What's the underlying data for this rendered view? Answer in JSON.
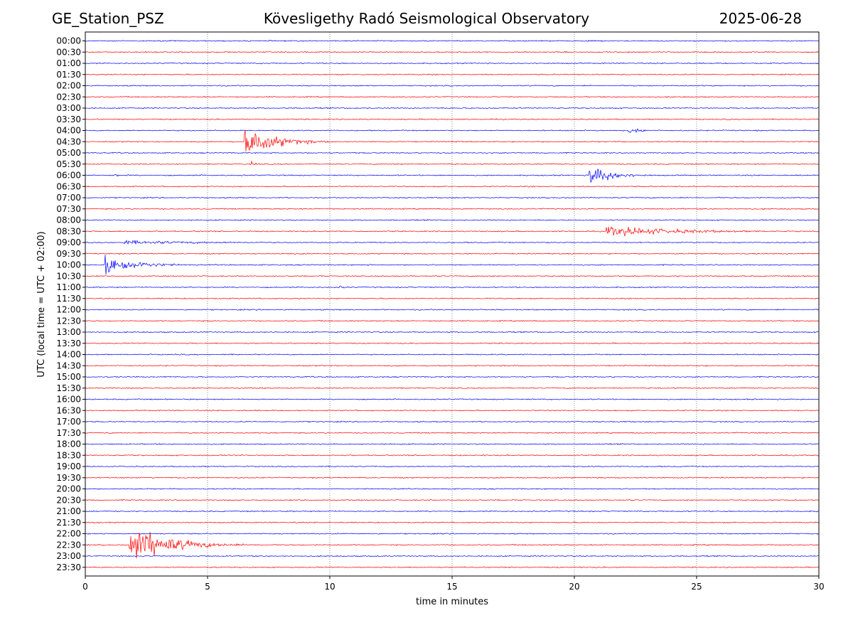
{
  "header": {
    "station": "GE_Station_PSZ",
    "observatory": "Kövesligethy Radó Seismological Observatory",
    "date": "2025-06-28"
  },
  "chart_data": {
    "type": "line",
    "title": "Kövesligethy Radó Seismological Observatory",
    "xlabel": "time in minutes",
    "ylabel": "UTC (local time = UTC + 02:00)",
    "xlim": [
      0,
      30
    ],
    "xticks": [
      0,
      5,
      10,
      15,
      20,
      25,
      30
    ],
    "grid": "vertical dotted lines at each 5 minutes",
    "colors": {
      "even_rows": "#0000ff",
      "odd_rows": "#ff0000",
      "grid": "#555555"
    },
    "rows": [
      "00:00",
      "00:30",
      "01:00",
      "01:30",
      "02:00",
      "02:30",
      "03:00",
      "03:30",
      "04:00",
      "04:30",
      "05:00",
      "05:30",
      "06:00",
      "06:30",
      "07:00",
      "07:30",
      "08:00",
      "08:30",
      "09:00",
      "09:30",
      "10:00",
      "10:30",
      "11:00",
      "11:30",
      "12:00",
      "12:30",
      "13:00",
      "13:30",
      "14:00",
      "14:30",
      "15:00",
      "15:30",
      "16:00",
      "16:30",
      "17:00",
      "17:30",
      "18:00",
      "18:30",
      "19:00",
      "19:30",
      "20:00",
      "20:30",
      "21:00",
      "21:30",
      "22:00",
      "22:30",
      "23:00",
      "23:30"
    ],
    "events": [
      {
        "row": "04:00",
        "start_min": 22.2,
        "peak_rel": 0.25,
        "decay_min": 0.8,
        "end_min": 24.5
      },
      {
        "row": "04:30",
        "start_min": 6.5,
        "peak_rel": 1.3,
        "decay_min": 1.2,
        "end_min": 11.5
      },
      {
        "row": "05:30",
        "start_min": 6.8,
        "peak_rel": 0.25,
        "decay_min": 0.2,
        "end_min": 7.0
      },
      {
        "row": "06:00",
        "start_min": 1.2,
        "peak_rel": 0.2,
        "decay_min": 0.2,
        "end_min": 1.6
      },
      {
        "row": "06:00",
        "start_min": 20.6,
        "peak_rel": 0.9,
        "decay_min": 0.9,
        "end_min": 23.5
      },
      {
        "row": "08:30",
        "start_min": 21.3,
        "peak_rel": 0.45,
        "decay_min": 3.0,
        "end_min": 29.5
      },
      {
        "row": "09:00",
        "start_min": 1.5,
        "peak_rel": 0.18,
        "decay_min": 4.0,
        "end_min": 7.0
      },
      {
        "row": "10:00",
        "start_min": 0.8,
        "peak_rel": 0.9,
        "decay_min": 1.2,
        "end_min": 5.0
      },
      {
        "row": "11:00",
        "start_min": 10.4,
        "peak_rel": 0.15,
        "decay_min": 0.3,
        "end_min": 10.9
      },
      {
        "row": "22:30",
        "start_min": 1.8,
        "peak_rel": 1.7,
        "decay_min": 1.5,
        "end_min": 9.5
      }
    ]
  }
}
